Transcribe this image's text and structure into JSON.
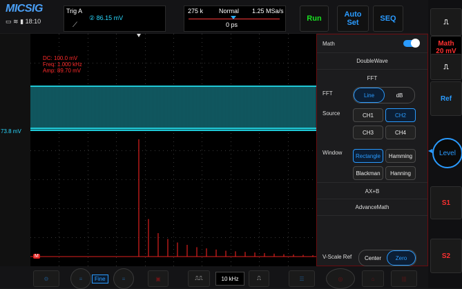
{
  "top": {
    "brand": "MICSIG",
    "clock": "18:10",
    "trig": {
      "label": "Trig A",
      "channel_value": "② 86.15 mV"
    },
    "timebase": {
      "memory": "275 k",
      "mode": "Normal",
      "rate": "1.25 MSa/s",
      "offset": "0 ps"
    },
    "run": "Run",
    "autoset": "Auto Set",
    "seq": "SEQ"
  },
  "screen": {
    "level_label": "73.8 mV",
    "readouts": [
      "DC: 100.0 mV",
      "Freq: 1.000 kHz",
      "Amp: 89.70 mV"
    ],
    "math_marker": "M",
    "trace_colors": {
      "ch2": "#1fc8d6",
      "math": "#e0201e"
    },
    "fft_values": [
      1.0,
      0.32,
      0.2,
      0.15,
      0.12,
      0.1,
      0.08,
      0.07,
      0.06,
      0.05,
      0.045,
      0.04,
      0.035,
      0.03,
      0.025,
      0.02,
      0.018,
      0.015,
      0.012,
      0.01
    ]
  },
  "math_panel": {
    "title": "Math",
    "toggle_on": true,
    "doublewave": "DoubleWave",
    "fft_header": "FFT",
    "fft_label": "FFT",
    "fft_modes": [
      "Line",
      "dB"
    ],
    "fft_selected": "Line",
    "source_label": "Source",
    "sources": [
      "CH1",
      "CH2",
      "CH3",
      "CH4"
    ],
    "source_selected": "CH2",
    "window_label": "Window",
    "windows": [
      "Rectangle",
      "Hamming",
      "Blackman",
      "Hanning"
    ],
    "window_selected": "Rectangle",
    "axb": "AX+B",
    "advance": "AdvanceMath",
    "vscale_label": "V-Scale Ref",
    "vscale_options": [
      "Center",
      "Zero"
    ],
    "vscale_selected": "Zero"
  },
  "right": {
    "math_label": "Math",
    "math_value": "20 mV",
    "ref": "Ref",
    "level": "Level",
    "s1": "S1",
    "s2": "S2"
  },
  "bottom": {
    "fine": "Fine",
    "freq": "10 kHz"
  }
}
